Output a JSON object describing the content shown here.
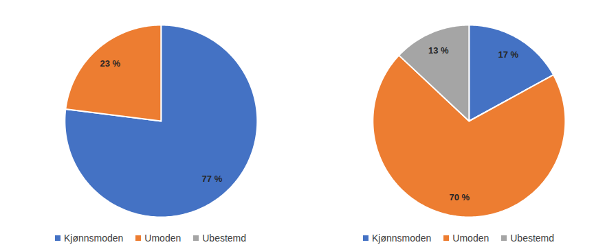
{
  "chart_data": [
    {
      "type": "pie",
      "categories": [
        "Kjønnsmoden",
        "Umoden",
        "Ubestemd"
      ],
      "values": [
        77,
        23,
        0
      ],
      "value_labels": [
        "77 %",
        "23 %",
        null
      ],
      "colors": [
        "#4472c4",
        "#ed7d31",
        "#a5a5a5"
      ],
      "data_labels": true,
      "legend": "bottom"
    },
    {
      "type": "pie",
      "categories": [
        "Kjønnsmoden",
        "Umoden",
        "Ubestemd"
      ],
      "values": [
        17,
        70,
        13
      ],
      "value_labels": [
        "17 %",
        "70 %",
        "13 %"
      ],
      "colors": [
        "#4472c4",
        "#ed7d31",
        "#a5a5a5"
      ],
      "data_labels": true,
      "legend": "bottom"
    }
  ]
}
